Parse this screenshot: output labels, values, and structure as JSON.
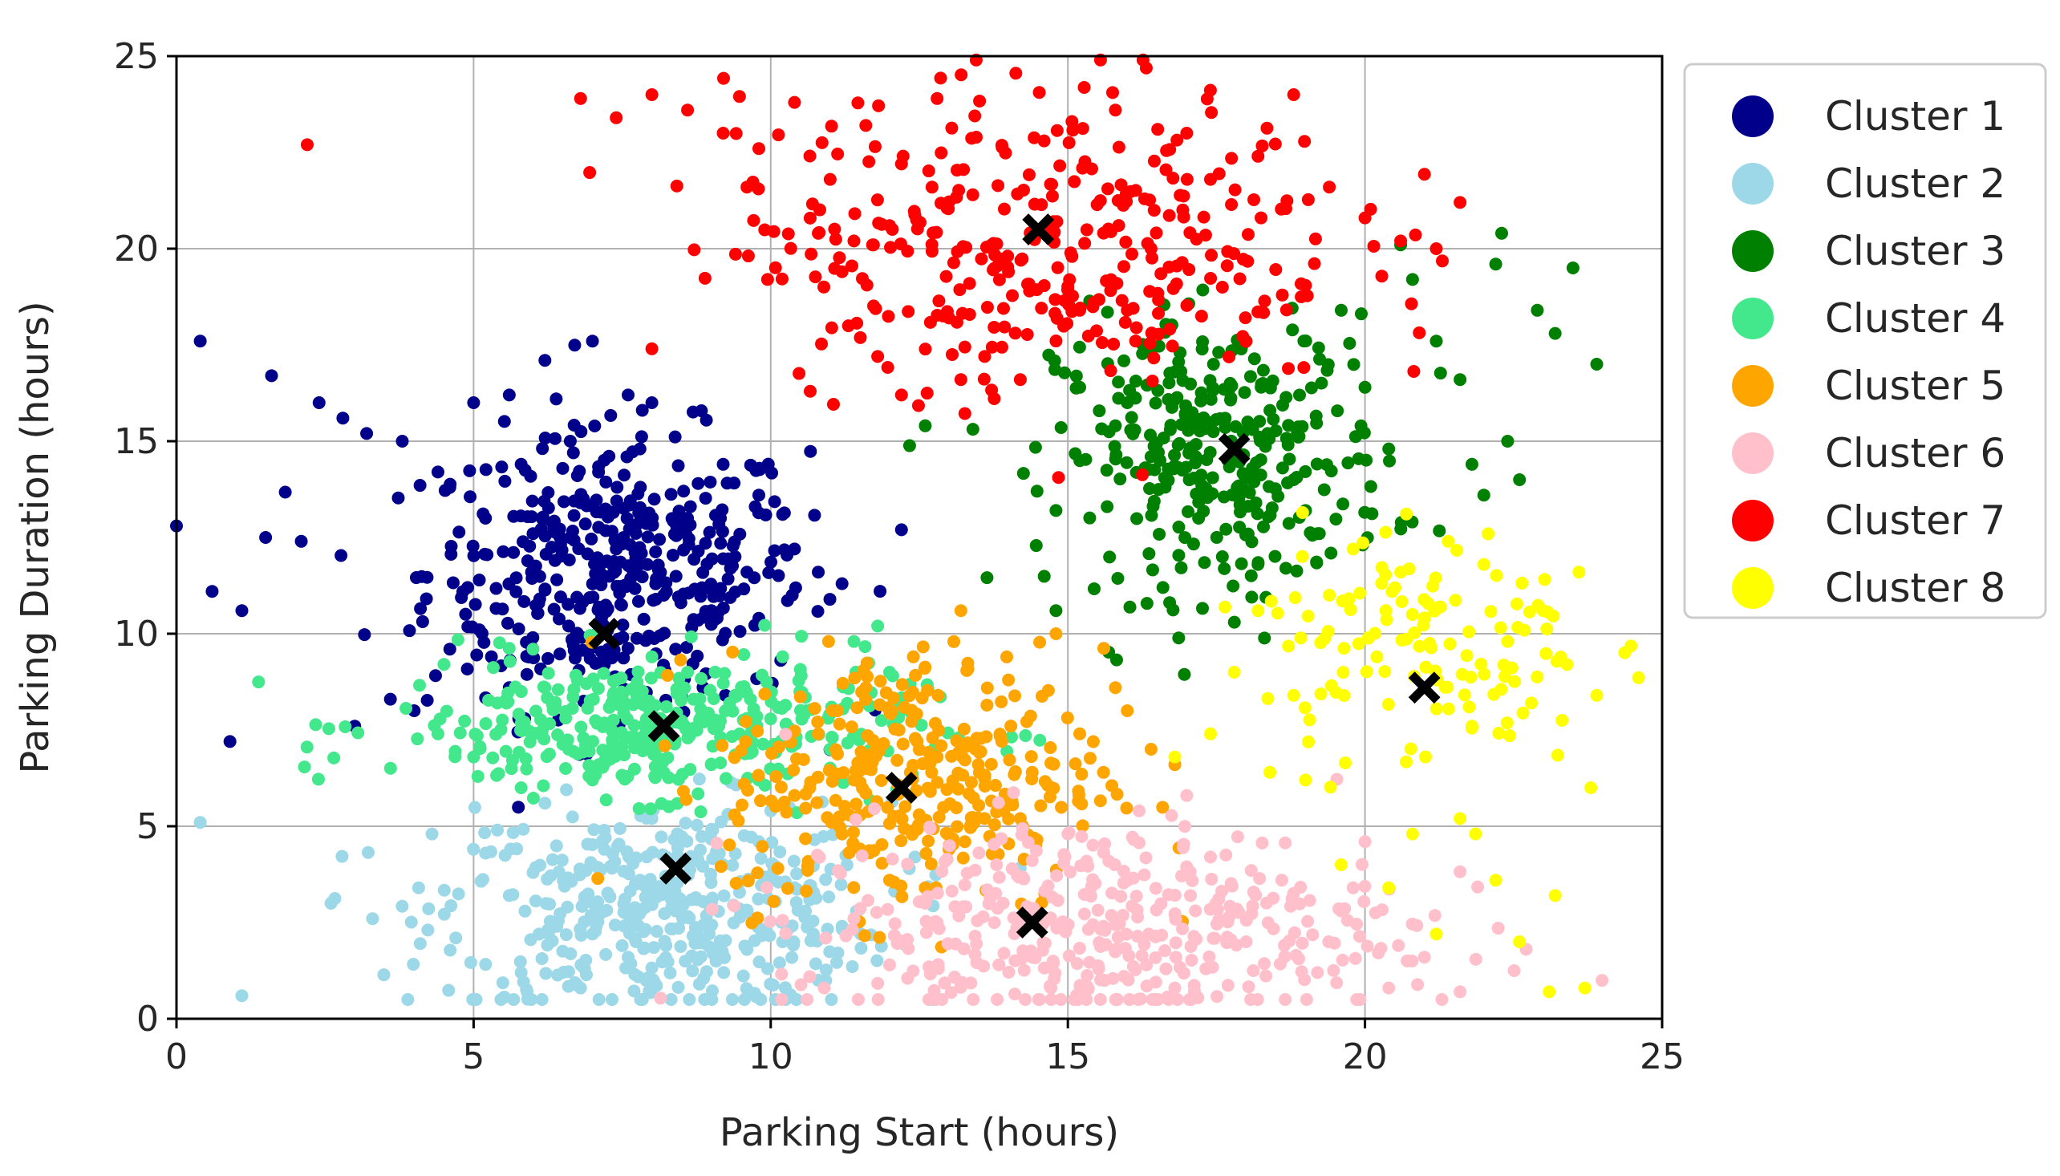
{
  "chart_data": {
    "type": "scatter",
    "title": "",
    "xlabel": "Parking Start (hours)",
    "ylabel": "Parking Duration (hours)",
    "xlim": [
      0,
      25
    ],
    "ylim": [
      0,
      25
    ],
    "xticks": [
      0,
      5,
      10,
      15,
      20,
      25
    ],
    "yticks": [
      0,
      5,
      10,
      15,
      20,
      25
    ],
    "xtick_labels": [
      "0",
      "5",
      "10",
      "15",
      "20",
      "25"
    ],
    "ytick_labels": [
      "0",
      "5",
      "10",
      "15",
      "20",
      "25"
    ],
    "grid": true,
    "legend_position": "outside-right-top",
    "series": [
      {
        "name": "Cluster 1",
        "color": "#00008b",
        "centroid": [
          7.2,
          10.0
        ],
        "points": [
          [
            0.4,
            17.6
          ],
          [
            1.6,
            16.7
          ],
          [
            2.4,
            16.0
          ],
          [
            2.8,
            15.6
          ],
          [
            3.2,
            15.2
          ],
          [
            3.8,
            15.0
          ],
          [
            4.4,
            14.2
          ],
          [
            4.6,
            13.8
          ],
          [
            5.0,
            16.0
          ],
          [
            5.6,
            16.2
          ],
          [
            6.2,
            17.1
          ],
          [
            7.0,
            17.6
          ],
          [
            7.6,
            16.2
          ],
          [
            8.0,
            16.0
          ],
          [
            9.2,
            14.4
          ],
          [
            9.8,
            13.6
          ],
          [
            10.2,
            13.1
          ],
          [
            10.4,
            12.2
          ],
          [
            10.8,
            11.6
          ],
          [
            11.2,
            11.3
          ],
          [
            12.2,
            12.7
          ],
          [
            1.5,
            12.5
          ],
          [
            2.1,
            12.4
          ],
          [
            0.6,
            11.1
          ],
          [
            1.1,
            10.6
          ],
          [
            0.9,
            7.2
          ],
          [
            0.0,
            12.8
          ],
          [
            3.0,
            7.6
          ],
          [
            3.6,
            8.3
          ],
          [
            4.0,
            8.0
          ],
          [
            4.6,
            9.6
          ],
          [
            4.9,
            11.2
          ],
          [
            5.3,
            9.4
          ],
          [
            5.6,
            8.6
          ],
          [
            6.0,
            12.6
          ],
          [
            6.4,
            11.4
          ],
          [
            6.8,
            13.4
          ],
          [
            7.4,
            12.2
          ],
          [
            7.8,
            14.8
          ],
          [
            8.2,
            11.0
          ],
          [
            8.6,
            13.0
          ],
          [
            9.0,
            10.6
          ],
          [
            9.4,
            12.0
          ],
          [
            9.8,
            10.4
          ],
          [
            5.8,
            14.4
          ],
          [
            6.6,
            10.2
          ],
          [
            7.2,
            9.2
          ],
          [
            8.4,
            9.6
          ],
          [
            9.6,
            11.6
          ],
          [
            5.2,
            13.0
          ]
        ]
      },
      {
        "name": "Cluster 2",
        "color": "#9cd8e7",
        "centroid": [
          8.4,
          3.9
        ],
        "points": [
          [
            0.4,
            5.1
          ],
          [
            1.1,
            0.6
          ],
          [
            2.6,
            3.0
          ],
          [
            3.3,
            2.6
          ],
          [
            4.3,
            4.8
          ],
          [
            4.7,
            2.1
          ],
          [
            5.4,
            4.9
          ],
          [
            5.6,
            3.2
          ],
          [
            5.8,
            1.2
          ],
          [
            6.2,
            5.6
          ],
          [
            6.4,
            2.4
          ],
          [
            6.8,
            0.8
          ],
          [
            7.2,
            4.4
          ],
          [
            7.6,
            1.6
          ],
          [
            8.0,
            5.2
          ],
          [
            8.4,
            2.8
          ],
          [
            8.8,
            0.9
          ],
          [
            9.2,
            4.0
          ],
          [
            9.6,
            1.8
          ],
          [
            10.0,
            5.4
          ],
          [
            10.4,
            3.4
          ],
          [
            10.8,
            1.0
          ],
          [
            11.2,
            2.4
          ],
          [
            6.0,
            3.8
          ],
          [
            7.0,
            2.2
          ],
          [
            9.0,
            3.0
          ],
          [
            10.2,
            2.0
          ],
          [
            5.9,
            0.7
          ],
          [
            7.8,
            3.6
          ],
          [
            9.8,
            4.6
          ]
        ]
      },
      {
        "name": "Cluster 3",
        "color": "#008000",
        "centroid": [
          17.8,
          14.8
        ],
        "points": [
          [
            12.6,
            15.4
          ],
          [
            14.8,
            13.2
          ],
          [
            14.8,
            10.6
          ],
          [
            16.6,
            11.2
          ],
          [
            15.2,
            16.4
          ],
          [
            15.8,
            15.4
          ],
          [
            16.4,
            14.6
          ],
          [
            16.8,
            16.8
          ],
          [
            17.2,
            13.0
          ],
          [
            17.6,
            12.0
          ],
          [
            18.0,
            17.6
          ],
          [
            18.4,
            15.8
          ],
          [
            18.8,
            14.0
          ],
          [
            19.2,
            12.6
          ],
          [
            19.6,
            18.4
          ],
          [
            20.0,
            16.4
          ],
          [
            20.4,
            14.8
          ],
          [
            20.8,
            19.2
          ],
          [
            21.2,
            17.6
          ],
          [
            21.6,
            16.6
          ],
          [
            21.8,
            14.4
          ],
          [
            22.0,
            13.6
          ],
          [
            22.2,
            19.6
          ],
          [
            22.4,
            15.0
          ],
          [
            22.6,
            14.0
          ],
          [
            22.9,
            18.4
          ],
          [
            23.2,
            17.8
          ],
          [
            23.5,
            19.5
          ],
          [
            23.9,
            17.0
          ],
          [
            22.3,
            20.4
          ],
          [
            20.6,
            20.1
          ],
          [
            19.0,
            13.2
          ],
          [
            18.2,
            11.8
          ],
          [
            17.0,
            15.6
          ],
          [
            16.0,
            16.0
          ]
        ]
      },
      {
        "name": "Cluster 4",
        "color": "#44e88c",
        "centroid": [
          8.2,
          7.6
        ],
        "points": [
          [
            4.4,
            7.4
          ],
          [
            5.0,
            6.8
          ],
          [
            5.4,
            8.2
          ],
          [
            5.8,
            6.0
          ],
          [
            6.2,
            8.6
          ],
          [
            6.6,
            7.0
          ],
          [
            7.0,
            6.2
          ],
          [
            7.4,
            8.8
          ],
          [
            7.8,
            7.2
          ],
          [
            8.2,
            6.4
          ],
          [
            8.6,
            9.0
          ],
          [
            9.0,
            6.6
          ],
          [
            9.4,
            8.4
          ],
          [
            9.8,
            6.2
          ],
          [
            10.2,
            9.4
          ],
          [
            10.6,
            8.0
          ],
          [
            11.0,
            7.0
          ],
          [
            11.4,
            9.8
          ],
          [
            11.8,
            10.2
          ],
          [
            12.0,
            9.0
          ],
          [
            6.0,
            9.6
          ],
          [
            8.0,
            9.4
          ],
          [
            9.6,
            7.8
          ]
        ]
      },
      {
        "name": "Cluster 5",
        "color": "#ffa500",
        "centroid": [
          12.2,
          6.0
        ],
        "points": [
          [
            10.4,
            5.8
          ],
          [
            10.8,
            7.4
          ],
          [
            11.2,
            4.8
          ],
          [
            11.6,
            8.6
          ],
          [
            12.0,
            3.6
          ],
          [
            12.4,
            9.4
          ],
          [
            12.8,
            6.8
          ],
          [
            13.2,
            10.6
          ],
          [
            13.6,
            5.2
          ],
          [
            14.0,
            8.8
          ],
          [
            14.4,
            6.4
          ],
          [
            14.8,
            10.0
          ],
          [
            15.2,
            7.4
          ],
          [
            15.6,
            6.4
          ],
          [
            16.0,
            8.0
          ],
          [
            16.4,
            7.0
          ],
          [
            16.8,
            6.6
          ],
          [
            13.0,
            4.4
          ],
          [
            12.6,
            3.4
          ],
          [
            11.4,
            6.2
          ],
          [
            14.2,
            5.2
          ],
          [
            15.8,
            8.6
          ]
        ]
      },
      {
        "name": "Cluster 6",
        "color": "#ffc0cb",
        "centroid": [
          14.4,
          2.5
        ],
        "points": [
          [
            10.9,
            0.8
          ],
          [
            11.4,
            2.6
          ],
          [
            12.0,
            1.4
          ],
          [
            12.6,
            3.0
          ],
          [
            13.2,
            0.9
          ],
          [
            13.8,
            4.0
          ],
          [
            14.4,
            1.6
          ],
          [
            15.0,
            4.8
          ],
          [
            15.6,
            2.4
          ],
          [
            16.2,
            5.4
          ],
          [
            16.8,
            0.8
          ],
          [
            17.4,
            4.2
          ],
          [
            18.0,
            2.0
          ],
          [
            18.6,
            3.6
          ],
          [
            19.2,
            1.2
          ],
          [
            19.6,
            2.8
          ],
          [
            20.0,
            4.6
          ],
          [
            20.4,
            0.8
          ],
          [
            21.0,
            1.6
          ],
          [
            21.6,
            0.7
          ],
          [
            17.0,
            5.8
          ],
          [
            15.2,
            0.7
          ],
          [
            19.8,
            3.4
          ]
        ]
      },
      {
        "name": "Cluster 7",
        "color": "#ff0000",
        "centroid": [
          14.5,
          20.5
        ],
        "points": [
          [
            2.2,
            22.7
          ],
          [
            6.8,
            23.9
          ],
          [
            7.4,
            23.4
          ],
          [
            8.0,
            24.0
          ],
          [
            8.6,
            23.6
          ],
          [
            9.2,
            23.0
          ],
          [
            9.8,
            22.6
          ],
          [
            10.4,
            23.8
          ],
          [
            11.0,
            21.8
          ],
          [
            11.6,
            23.2
          ],
          [
            12.2,
            22.2
          ],
          [
            12.8,
            23.9
          ],
          [
            13.4,
            21.4
          ],
          [
            14.0,
            19.4
          ],
          [
            14.6,
            22.8
          ],
          [
            15.2,
            18.4
          ],
          [
            15.8,
            23.6
          ],
          [
            16.4,
            20.0
          ],
          [
            17.0,
            23.0
          ],
          [
            17.6,
            19.0
          ],
          [
            18.2,
            22.4
          ],
          [
            18.8,
            24.0
          ],
          [
            19.4,
            21.6
          ],
          [
            20.0,
            20.8
          ],
          [
            20.6,
            20.2
          ],
          [
            21.2,
            20.0
          ],
          [
            21.6,
            21.2
          ],
          [
            10.8,
            20.4
          ],
          [
            12.0,
            20.6
          ],
          [
            13.0,
            18.2
          ],
          [
            13.6,
            17.2
          ],
          [
            14.2,
            16.6
          ],
          [
            16.0,
            18.4
          ],
          [
            11.8,
            17.2
          ],
          [
            12.2,
            16.2
          ],
          [
            13.2,
            16.6
          ],
          [
            8.0,
            17.4
          ],
          [
            11.4,
            20.2
          ],
          [
            9.6,
            21.6
          ],
          [
            17.4,
            21.8
          ]
        ]
      },
      {
        "name": "Cluster 8",
        "color": "#ffff00",
        "centroid": [
          21.0,
          8.6
        ],
        "points": [
          [
            16.8,
            6.8
          ],
          [
            17.4,
            7.4
          ],
          [
            17.8,
            9.0
          ],
          [
            18.2,
            10.6
          ],
          [
            18.4,
            6.4
          ],
          [
            18.8,
            8.4
          ],
          [
            19.0,
            6.2
          ],
          [
            19.4,
            11.0
          ],
          [
            19.6,
            4.0
          ],
          [
            19.8,
            12.2
          ],
          [
            20.2,
            9.4
          ],
          [
            20.4,
            3.4
          ],
          [
            20.6,
            11.6
          ],
          [
            20.8,
            4.8
          ],
          [
            21.0,
            10.4
          ],
          [
            21.2,
            2.2
          ],
          [
            21.4,
            12.4
          ],
          [
            21.6,
            5.2
          ],
          [
            21.8,
            7.6
          ],
          [
            22.0,
            11.8
          ],
          [
            22.2,
            3.6
          ],
          [
            22.4,
            9.8
          ],
          [
            22.6,
            2.0
          ],
          [
            22.8,
            8.2
          ],
          [
            23.0,
            10.6
          ],
          [
            23.2,
            3.2
          ],
          [
            23.4,
            9.2
          ],
          [
            23.6,
            11.6
          ],
          [
            23.8,
            6.0
          ],
          [
            23.9,
            8.4
          ],
          [
            23.7,
            0.8
          ],
          [
            23.1,
            0.7
          ]
        ]
      }
    ],
    "centroids_marker": {
      "color": "#000000",
      "shape": "X"
    }
  }
}
